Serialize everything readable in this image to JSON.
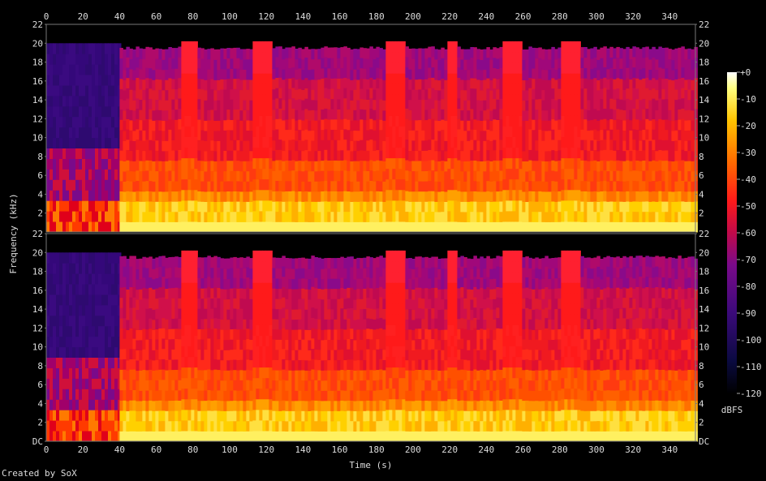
{
  "chart_data": {
    "type": "heatmap",
    "title": "",
    "xlabel": "Time (s)",
    "ylabel": "Frequency (kHz)",
    "colorbar_label": "dBFS",
    "xlim": [
      0,
      354
    ],
    "ylim_khz": [
      0,
      22
    ],
    "x_ticks": [
      "0",
      "20",
      "40",
      "60",
      "80",
      "100",
      "120",
      "140",
      "160",
      "180",
      "200",
      "220",
      "240",
      "260",
      "280",
      "300",
      "320",
      "340"
    ],
    "y_ticks": [
      "DC",
      "2",
      "4",
      "6",
      "8",
      "10",
      "12",
      "14",
      "16",
      "18",
      "20",
      "22"
    ],
    "y_ticks_upper": [
      "2",
      "4",
      "6",
      "8",
      "10",
      "12",
      "14",
      "16",
      "18",
      "20",
      "22"
    ],
    "colorbar_ticks": [
      "+0",
      "-10",
      "-20",
      "-30",
      "-40",
      "-50",
      "-60",
      "-70",
      "-80",
      "-90",
      "-100",
      "-110",
      "-120"
    ],
    "colorbar_range_dbfs": [
      -120,
      0
    ],
    "channels": [
      {
        "segments": [
          {
            "t0": 0,
            "t1": 40,
            "cutoff_khz": 20,
            "level": "low"
          },
          {
            "t0": 40,
            "t1": 354,
            "cutoff_khz": 19.5,
            "level": "high"
          }
        ],
        "bright_bursts_s": [
          [
            72,
            82
          ],
          [
            112,
            122
          ],
          [
            184,
            194
          ],
          [
            218,
            224
          ],
          [
            248,
            258
          ],
          [
            280,
            290
          ]
        ]
      },
      {
        "segments": [
          {
            "t0": 0,
            "t1": 40,
            "cutoff_khz": 20,
            "level": "low"
          },
          {
            "t0": 40,
            "t1": 354,
            "cutoff_khz": 19.5,
            "level": "high"
          }
        ],
        "bright_bursts_s": [
          [
            72,
            82
          ],
          [
            112,
            122
          ],
          [
            184,
            194
          ],
          [
            218,
            224
          ],
          [
            248,
            258
          ],
          [
            280,
            290
          ]
        ]
      }
    ]
  },
  "footer": {
    "credit": "Created by SoX"
  },
  "colors": {
    "background": "#000000",
    "axis": "#888888"
  }
}
